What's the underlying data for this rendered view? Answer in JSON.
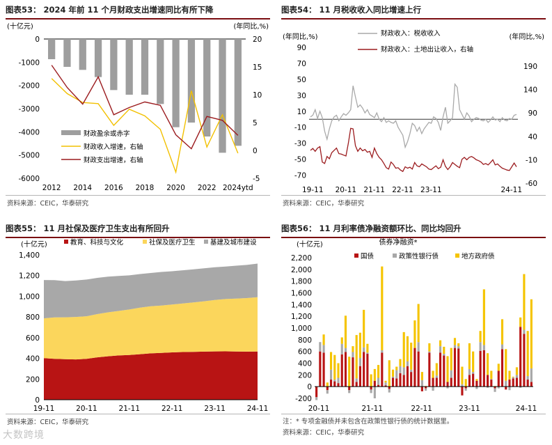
{
  "watermark": "大数跨境",
  "panels": {
    "p53": {
      "title": "图表53：  2024 年前 11 个月财政支出增速同比有所下降",
      "source": "资料来源：CEIC，华泰研究",
      "chart_data": {
        "type": "bar+line",
        "left_unit": "(十亿元)",
        "right_unit": "(年同比,%)",
        "categories": [
          "2012",
          "2013",
          "2014",
          "2015",
          "2016",
          "2017",
          "2018",
          "2019",
          "2020",
          "2021",
          "2022",
          "2023",
          "2024ytd"
        ],
        "x_tick_labels": [
          "2012",
          "2014",
          "2016",
          "2018",
          "2020",
          "2022",
          "2024ytd"
        ],
        "ylim_left": [
          -6000,
          0
        ],
        "ylim_right": [
          -5,
          20
        ],
        "yticks_left": [
          "0",
          "-1000",
          "-2000",
          "-3000",
          "-4000",
          "-5000",
          "-6000"
        ],
        "yticks_right": [
          "20",
          "15",
          "10",
          "5",
          "0",
          "-5"
        ],
        "series": [
          {
            "name": "财政盈余或赤字",
            "type": "bar",
            "axis": "left",
            "color": "#9e9e9e",
            "values": [
              -870,
              -1200,
              -1330,
              -1640,
              -2200,
              -2400,
              -2400,
              -2800,
              -3800,
              -3600,
              -4200,
              -4900,
              -4600
            ]
          },
          {
            "name": "财政收入增速，右轴",
            "type": "line",
            "axis": "right",
            "color": "#f2c000",
            "values": [
              12.9,
              10.2,
              8.6,
              8.4,
              4.5,
              7.4,
              6.2,
              3.8,
              -3.9,
              10.7,
              0.6,
              6.4,
              -0.5
            ]
          },
          {
            "name": "财政支出增速，右轴",
            "type": "line",
            "axis": "right",
            "color": "#9b1b1e",
            "values": [
              15.3,
              11.3,
              8.3,
              13.2,
              6.4,
              7.7,
              8.7,
              8.1,
              2.8,
              0.3,
              6.1,
              5.4,
              2.7
            ]
          }
        ],
        "legend_position": "bottom-left"
      }
    },
    "p54": {
      "title": "图表54：  11 月税收收入同比增速上行",
      "source": "资料来源：CEIC，华泰研究",
      "chart_data": {
        "type": "line",
        "left_unit": "(年同比,%)",
        "right_unit": "(年同比,%)",
        "x_tick_labels": [
          "19-11",
          "20-11",
          "21-11",
          "22-11",
          "23-11",
          "24-11"
        ],
        "ylim_left": [
          -80,
          90
        ],
        "ylim_right": [
          -60,
          230
        ],
        "yticks_left": [
          "90",
          "70",
          "50",
          "30",
          "10",
          "-10",
          "-30",
          "-50",
          "-70"
        ],
        "yticks_right": [
          "190",
          "140",
          "90",
          "40",
          "-10",
          "-60"
        ],
        "zero_line_left": 0,
        "series": [
          {
            "name": "财政收入：税收收入",
            "axis": "left",
            "color": "#a9a9a9",
            "values": [
              3,
              5,
              12,
              1,
              10,
              2,
              -15,
              -25,
              -12,
              -2,
              3,
              5,
              -2,
              3,
              7,
              5,
              8,
              12,
              42,
              28,
              15,
              18,
              14,
              8,
              12,
              6,
              4,
              2,
              8,
              0,
              -3,
              2,
              -4,
              -2,
              -4,
              -5,
              -2,
              -10,
              -15,
              -20,
              -35,
              -28,
              -18,
              -5,
              -8,
              -15,
              -10,
              -18,
              -12,
              -8,
              -4,
              -5,
              3,
              1,
              -4,
              -14,
              3,
              15,
              -5,
              -2,
              2,
              44,
              40,
              12,
              6,
              0,
              8,
              4,
              -3,
              0,
              2,
              1,
              -1,
              -2,
              0,
              -4,
              -1,
              3,
              -1,
              0,
              -3,
              2,
              -1,
              -2,
              1,
              0,
              5,
              6
            ]
          },
          {
            "name": "财政收入：土地出让收入，右轴",
            "axis": "right",
            "color": "#9b1b1e",
            "values": [
              10,
              14,
              8,
              15,
              18,
              -15,
              -18,
              -3,
              -8,
              5,
              10,
              15,
              3,
              2,
              0,
              -2,
              25,
              57,
              56,
              20,
              8,
              15,
              9,
              12,
              6,
              8,
              -5,
              15,
              3,
              -5,
              -10,
              -18,
              -27,
              -30,
              -15,
              -20,
              -28,
              -27,
              -32,
              -35,
              -25,
              -28,
              -26,
              -30,
              -16,
              -23,
              -25,
              -19,
              -22,
              -25,
              -30,
              -31,
              -27,
              -23,
              -29,
              -26,
              -10,
              -24,
              -31,
              -25,
              -16,
              -20,
              -24,
              -27,
              -9,
              -5,
              -10,
              -5,
              -3,
              -6,
              -10,
              -12,
              -15,
              -20,
              -18,
              -21,
              -16,
              -10,
              -21,
              -19,
              -24,
              -28,
              -30,
              -32,
              -33,
              -25,
              -17,
              -25
            ]
          }
        ],
        "legend_position": "top"
      }
    },
    "p55": {
      "title": "图表55：  11 月社保及医疗卫生支出有所回升",
      "source": "资料来源：CEIC，华泰研究",
      "chart_data": {
        "type": "area",
        "stacked": true,
        "left_unit": "(十亿元)",
        "x_tick_labels": [
          "19-11",
          "20-11",
          "21-11",
          "22-11",
          "23-11",
          "24-11"
        ],
        "ylim": [
          0,
          1400
        ],
        "yticks": [
          "1,400",
          "1,200",
          "1,000",
          "800",
          "600",
          "400",
          "200",
          "0"
        ],
        "series": [
          {
            "name": "教育、科技与文化",
            "color": "#b81414",
            "values": [
              402,
              396,
              392,
              390,
              395,
              410,
              420,
              428,
              432,
              440,
              448,
              452,
              458,
              461,
              463,
              465,
              467,
              468,
              466,
              465,
              466
            ]
          },
          {
            "name": "社保及医疗卫生",
            "color": "#fbd65c",
            "values": [
              385,
              400,
              405,
              410,
              412,
              418,
              425,
              430,
              440,
              450,
              455,
              458,
              462,
              470,
              478,
              487,
              497,
              505,
              512,
              518,
              525
            ]
          },
          {
            "name": "基建及城市建设",
            "color": "#a8a8a8",
            "values": [
              370,
              360,
              350,
              352,
              355,
              350,
              345,
              338,
              330,
              325,
              322,
              325,
              322,
              320,
              320,
              318,
              316,
              314,
              318,
              320,
              325
            ]
          }
        ],
        "legend_position": "top"
      }
    },
    "p56": {
      "title": "图表56：  11 月利率债净融资额环比、同比均回升",
      "chart_title": "债券净融资*",
      "note": "注：* 专项金融债并未包含在政策性银行债的统计数据里。",
      "source": "资料来源：CEIC，华泰研究",
      "chart_data": {
        "type": "bar",
        "left_unit": "(十亿元)",
        "x_tick_labels": [
          "20-11",
          "21-11",
          "22-11",
          "23-11",
          "24-11"
        ],
        "ylim": [
          -200,
          2200
        ],
        "yticks": [
          "2,200",
          "2,000",
          "1,800",
          "1,600",
          "1,400",
          "1,200",
          "1,000",
          "800",
          "600",
          "400",
          "200",
          "0",
          "-200"
        ],
        "series": [
          {
            "name": "国债",
            "color": "#b81414",
            "values": [
              -180,
              600,
              580,
              -60,
              120,
              90,
              60,
              550,
              590,
              -60,
              500,
              80,
              350,
              590,
              560,
              -50,
              100,
              30,
              580,
              20,
              -40,
              150,
              140,
              230,
              200,
              350,
              250,
              660,
              600,
              -80,
              -30,
              580,
              150,
              150,
              580,
              530,
              80,
              150,
              660,
              650,
              -150,
              -30,
              200,
              220,
              100,
              610,
              620,
              200,
              120,
              -30,
              270,
              640,
              -50,
              120,
              140,
              150,
              1020,
              900,
              120,
              80
            ]
          },
          {
            "name": "政策性银行债",
            "color": "#a8a8a8",
            "values": [
              -50,
              160,
              130,
              -60,
              170,
              30,
              90,
              180,
              70,
              -50,
              90,
              60,
              140,
              80,
              20,
              -60,
              -200,
              120,
              40,
              50,
              -60,
              20,
              140,
              120,
              130,
              80,
              40,
              -10,
              160,
              110,
              -40,
              20,
              -70,
              40,
              110,
              30,
              -30,
              130,
              50,
              40,
              40,
              -40,
              100,
              30,
              -40,
              150,
              90,
              -20,
              10,
              -60,
              -30,
              80,
              100,
              -60,
              20,
              50,
              -20,
              70,
              60,
              230
            ]
          },
          {
            "name": "地方政府债",
            "color": "#f5c400",
            "values": [
              0,
              0,
              180,
              70,
              300,
              420,
              250,
              110,
              550,
              510,
              100,
              740,
              430,
              640,
              150,
              210,
              200,
              220,
              1430,
              30,
              450,
              120,
              60,
              120,
              600,
              430,
              460,
              470,
              650,
              140,
              10,
              140,
              120,
              210,
              100,
              120,
              440,
              380,
              120,
              50,
              300,
              130,
              440,
              350,
              30,
              190,
              950,
              370,
              140,
              10,
              120,
              430,
              540,
              150,
              10,
              130,
              160,
              950,
              770,
              1180
            ]
          }
        ],
        "legend_position": "top"
      }
    }
  }
}
